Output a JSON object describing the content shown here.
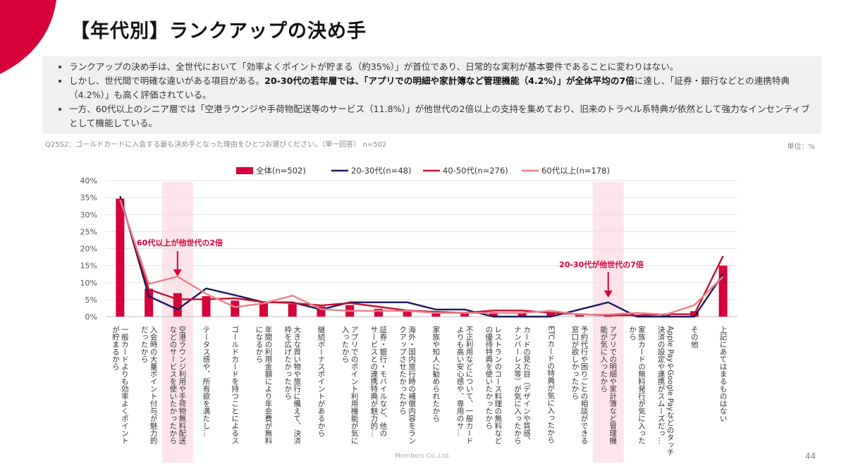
{
  "slide": {
    "title": "【年代別】ランクアップの決め手",
    "bullets": [
      {
        "parts": [
          {
            "t": "ランクアップの決め手は、全世代において「効率よくポイントが貯まる（約35%）」が首位であり、日常的な実利が基本要件であることに変わりはない。",
            "b": false
          }
        ]
      },
      {
        "parts": [
          {
            "t": "しかし、世代間で明確な違いがある項目がある。",
            "b": false
          },
          {
            "t": "20-30代の若年層では、「アプリでの明細や家計簿など管理機能（4.2%）」が全体平均の7倍",
            "b": true
          },
          {
            "t": "に達し、「証券・銀行などとの連携特典（4.2%）」も高く評価されている。",
            "b": false
          }
        ]
      },
      {
        "parts": [
          {
            "t": "一方、60代以上のシニア層では「空港ラウンジや手荷物配送等のサービス（11.8%）」が他世代の2倍以上の支持を集めており、旧来のトラベル系特典が依然として強力なインセンティブとして機能している。",
            "b": false
          }
        ]
      }
    ],
    "question": "Q25S2：ゴールドカードに入会する最も決め手となった理由をひとつお選びください。（単一回答） n=502",
    "unit": "単位：%",
    "footer": "Members Co.,Ltd.",
    "page_number": "44"
  },
  "colors": {
    "accent": "#d7003a",
    "bar": "#d7003a",
    "line_2030": "#1a1a5e",
    "line_4050": "#c8102e",
    "line_60": "#e8808a",
    "highlight": "#fde4ea",
    "annotation": "#d7003a"
  },
  "chart_data": {
    "type": "bar",
    "y_ticks": [
      "40%",
      "35%",
      "30%",
      "25%",
      "20%",
      "15%",
      "10%",
      "5%",
      "0%"
    ],
    "ylim": [
      0,
      40
    ],
    "categories": [
      "一般カードよりも効率よくポイントが貯まるから",
      "入会時の大量ポイント付与が魅力的だったから",
      "空港ラウンジ利用や手荷物無料配送などのサービスを使いたかったから",
      "ステータス感や、所有欲を満たし…",
      "ゴールドカードを持つことによるステータス感や、所有欲を満たしたかったから",
      "年間の利用金額により年会費が無料になるから",
      "大きな買い物や旅行に備えて、決済枠を広げたかったから",
      "継続ボーナスポイントがあるから",
      "アプリでのポイント利用機能が気に入ったから",
      "証券・銀行・モバイルなど、他のサービスとの連携特典が魅力的…",
      "海外・国内旅行時の補償内容をランクアップさせたかったから",
      "家族や知人に勧められたから",
      "不正利用などについて、一般カードよりも高い安心感や、専用のサ…",
      "レストランのコース料理の無料など、の優待特典を使いたかったから",
      "カードの見た目（デザインや質感、ナンバーレス等）が気に入ったから",
      "ETCカードの特典が気に入ったから",
      "予約代行や困りごとの相談ができる窓口が欲しかったから",
      "アプリでの明細や家計簿など管理機能が気に入ったから",
      "家族カードの無料発行が気に入ったから",
      "Apple PayやGoogle Payなどのタッチ決済の設定や連携がスムーズだっ…",
      "その他",
      "上記にあてはまるものはない"
    ],
    "category_labels": [
      "一般カードよりも効率よくポイント\nが貯まるから",
      "入会時の大量ポイント付与が魅力的\nだったから",
      "空港ラウンジ利用や手荷物無料配送\nなどのサービスを使いたかったから",
      "テータス感や、所有欲を満たし…",
      "ゴールドカードを持つことによるス",
      "年間の利用金額により年会費が無料\nになるから",
      "大きな買い物や旅行に備えて、決済\n枠を広げたかったから",
      "継続ボーナスポイントがあるから",
      "アプリでのポイント利用機能が気に\n入ったから",
      "証券・銀行・モバイルなど、他の\nサービスとの連携特典が魅力的…",
      "海外・国内旅行時の補償内容をラン\nクアップさせたかったから",
      "家族や知人に勧められたから",
      "不正利用などについて、一般カード\nよりも高い安心感や、専用のサ…",
      "レストランのコース料理の無料など\nの優待特典を使いたかったから",
      "カードの見た目（デザインや質感、\nナンバーレス等）が気に入ったから",
      "ETCカードの特典が気に入ったから",
      "予約代行や困りごとの相談ができる\n窓口が欲しかったから",
      "アプリでの明細や家計簿など管理機\n能が気に入ったから",
      "家族カードの無料発行が気に入った\nから",
      "Apple PayやGoogle Payなどのタッチ\n決済の設定や連携がスムーズだっ…",
      "その他",
      "上記にあてはまるものはない"
    ],
    "bar_series": {
      "name": "全体(n=502)",
      "values": [
        34.7,
        8.2,
        6.9,
        6.0,
        4.7,
        4.2,
        3.7,
        3.0,
        3.4,
        2.3,
        2.0,
        1.6,
        1.4,
        1.4,
        1.3,
        1.1,
        0.8,
        0.6,
        0.6,
        0.6,
        1.6,
        15.0
      ]
    },
    "line_series": [
      {
        "name": "20-30代(n=48)",
        "color_key": "line_2030",
        "values": [
          35.4,
          6.0,
          2.1,
          8.3,
          6.3,
          4.2,
          4.2,
          2.1,
          4.2,
          4.2,
          4.2,
          2.1,
          2.1,
          0.0,
          0.0,
          0.0,
          2.1,
          4.2,
          0.0,
          0.0,
          0.0,
          12.5
        ]
      },
      {
        "name": "40-50代(n=276)",
        "color_key": "line_4050",
        "values": [
          34.8,
          8.0,
          5.1,
          5.1,
          5.4,
          4.3,
          4.0,
          3.3,
          4.0,
          2.9,
          1.8,
          1.4,
          1.1,
          1.8,
          1.8,
          1.1,
          0.7,
          0.4,
          0.4,
          0.7,
          0.7,
          17.8
        ]
      },
      {
        "name": "60代以上(n=178)",
        "color_key": "line_60",
        "values": [
          34.3,
          9.6,
          11.8,
          6.7,
          2.8,
          3.9,
          6.2,
          2.2,
          1.7,
          1.7,
          1.7,
          1.1,
          1.1,
          1.1,
          1.1,
          1.7,
          0.6,
          0.6,
          1.1,
          0.6,
          3.4,
          11.8
        ]
      }
    ],
    "highlight_categories": [
      2,
      17
    ],
    "annotations": [
      {
        "text": "60代以上が他世代の2倍",
        "category": 2
      },
      {
        "text": "20-30代が他世代の7倍",
        "category": 17
      }
    ],
    "legend_position": "top"
  }
}
